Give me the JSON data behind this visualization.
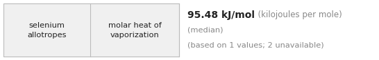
{
  "col1_text": "selenium\nallotropes",
  "col2_text": "molar heat of\nvaporization",
  "value_bold": "95.48 kJ/mol",
  "value_unit": "  (kilojoules per mole)",
  "line2": "(median)",
  "line3": "(based on 1 values; 2 unavailable)",
  "bg_color": "#f0f0f0",
  "border_color": "#bbbbbb",
  "text_color_dark": "#222222",
  "text_color_gray": "#888888",
  "fig_width": 5.46,
  "fig_height": 0.87,
  "dpi": 100
}
